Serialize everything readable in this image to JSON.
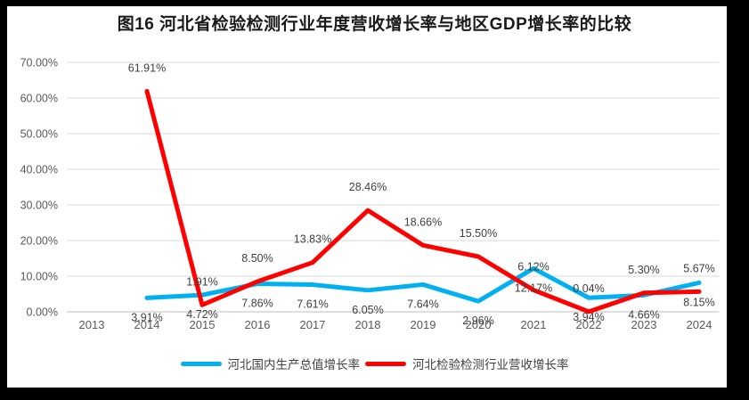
{
  "title": "图16 河北省检验检测行业年度营收增长率与地区GDP增长率的比较",
  "chart_data": {
    "type": "line",
    "title": "图16 河北省检验检测行业年度营收增长率与地区GDP增长率的比较",
    "categories": [
      "2013",
      "2014",
      "2015",
      "2016",
      "2017",
      "2018",
      "2019",
      "2020",
      "2021",
      "2022",
      "2023",
      "2024"
    ],
    "series": [
      {
        "name": "河北国内生产总值增长率",
        "color": "#00B0F0",
        "label_position": "below",
        "values": [
          null,
          3.91,
          4.72,
          7.86,
          7.61,
          6.05,
          7.64,
          2.96,
          12.17,
          3.94,
          4.66,
          8.15
        ],
        "labels": [
          null,
          "3.91%",
          "4.72%",
          "7.86%",
          "7.61%",
          "6.05%",
          "7.64%",
          "2.96%",
          "12.17%",
          "3.94%",
          "4.66%",
          "8.15%"
        ]
      },
      {
        "name": "河北检验检测行业营收增长率",
        "color": "#FF0000",
        "label_position": "above",
        "values": [
          null,
          61.91,
          1.91,
          8.5,
          13.83,
          28.46,
          18.66,
          15.5,
          6.12,
          0.04,
          5.3,
          5.67
        ],
        "labels": [
          null,
          "61.91%",
          "1.91%",
          "8.50%",
          "13.83%",
          "28.46%",
          "18.66%",
          "15.50%",
          "6.12%",
          "0.04%",
          "5.30%",
          "5.67%"
        ]
      }
    ],
    "ylim": [
      0,
      70
    ],
    "y_tick_step": 10,
    "y_ticks": [
      "0.00%",
      "10.00%",
      "20.00%",
      "30.00%",
      "40.00%",
      "50.00%",
      "60.00%",
      "70.00%"
    ],
    "grid": true,
    "legend_position": "bottom",
    "colors": {
      "axis_text": "#595959",
      "data_label_text": "#404040",
      "gridline": "#D9D9D9",
      "axis_line": "#BFBFBF",
      "frame": "#000000",
      "background": "#FFFFFF"
    }
  },
  "legend": {
    "items": [
      {
        "label": "河北国内生产总值增长率",
        "color": "#00B0F0"
      },
      {
        "label": "河北检验检测行业营收增长率",
        "color": "#FF0000"
      }
    ]
  }
}
